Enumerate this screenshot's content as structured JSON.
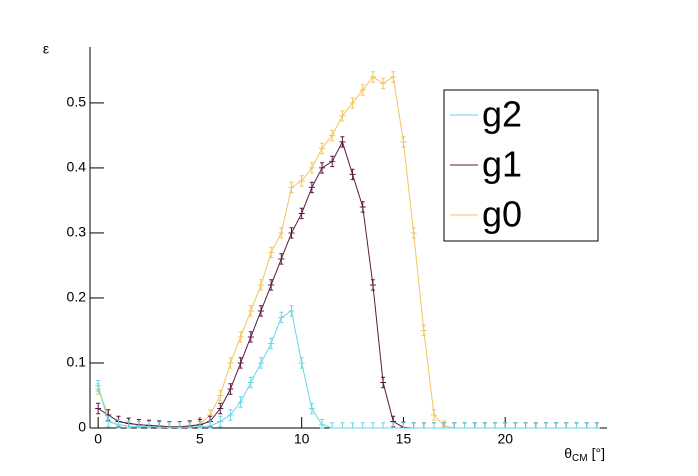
{
  "chart_data": {
    "type": "line",
    "ylabel": "ε",
    "xlabel": {
      "symbol": "θ",
      "subscript": "CM",
      "unit": "[°]"
    },
    "x": [
      0,
      0.5,
      1,
      1.5,
      2,
      2.5,
      3,
      3.5,
      4,
      4.5,
      5,
      5.5,
      6,
      6.5,
      7,
      7.5,
      8,
      8.5,
      9,
      9.5,
      10,
      10.5,
      11,
      11.5,
      12,
      12.5,
      13,
      13.5,
      14,
      14.5,
      15,
      15.5,
      16,
      16.5,
      17,
      17.5,
      18,
      18.5,
      19,
      19.5,
      20,
      20.5,
      21,
      21.5,
      22,
      22.5,
      23,
      23.5,
      24,
      24.5
    ],
    "series": [
      {
        "name": "g2",
        "color": "#6ad6e6",
        "error": 0.008,
        "values": [
          0.065,
          0.01,
          0.005,
          0.003,
          0.002,
          0.002,
          0.001,
          0.001,
          0.001,
          0.001,
          0.002,
          0.003,
          0.01,
          0.02,
          0.04,
          0.07,
          0.1,
          0.13,
          0.17,
          0.18,
          0.1,
          0.03,
          0.005,
          0,
          0,
          0,
          0,
          0,
          0,
          0,
          0,
          0,
          0,
          0,
          0,
          0,
          0,
          0,
          0,
          0,
          0,
          0,
          0,
          0,
          0,
          0,
          0,
          0,
          0,
          0
        ]
      },
      {
        "name": "g1",
        "color": "#5a1a40",
        "error": 0.008,
        "values": [
          0.03,
          0.02,
          0.01,
          0.007,
          0.005,
          0.004,
          0.003,
          0.002,
          0.002,
          0.003,
          0.005,
          0.01,
          0.03,
          0.06,
          0.1,
          0.14,
          0.18,
          0.22,
          0.26,
          0.3,
          0.33,
          0.37,
          0.4,
          0.41,
          0.44,
          0.39,
          0.34,
          0.22,
          0.07,
          0.01,
          0.001,
          0,
          0,
          0,
          0,
          0,
          0,
          0,
          0,
          0,
          0,
          0,
          0,
          0,
          0,
          0,
          0,
          0,
          0,
          0
        ]
      },
      {
        "name": "g0",
        "color": "#f2c45c",
        "error": 0.008,
        "values": [
          0.06,
          0.02,
          0.01,
          0.008,
          0.005,
          0.004,
          0.003,
          0.002,
          0.002,
          0.003,
          0.006,
          0.02,
          0.05,
          0.1,
          0.14,
          0.18,
          0.22,
          0.27,
          0.3,
          0.37,
          0.38,
          0.4,
          0.43,
          0.45,
          0.48,
          0.5,
          0.52,
          0.54,
          0.53,
          0.54,
          0.44,
          0.3,
          0.15,
          0.02,
          0.003,
          0,
          0,
          0,
          0,
          0,
          0,
          0,
          0,
          0,
          0,
          0,
          0,
          0,
          0,
          0
        ]
      }
    ],
    "xlim": [
      -0.4,
      25
    ],
    "xticks": [
      0,
      5,
      10,
      15,
      20
    ],
    "ylim": [
      0,
      0.586
    ],
    "yticks": [
      0,
      0.1,
      0.2,
      0.3,
      0.4,
      0.5
    ],
    "grid": false,
    "legend": "upper right"
  }
}
